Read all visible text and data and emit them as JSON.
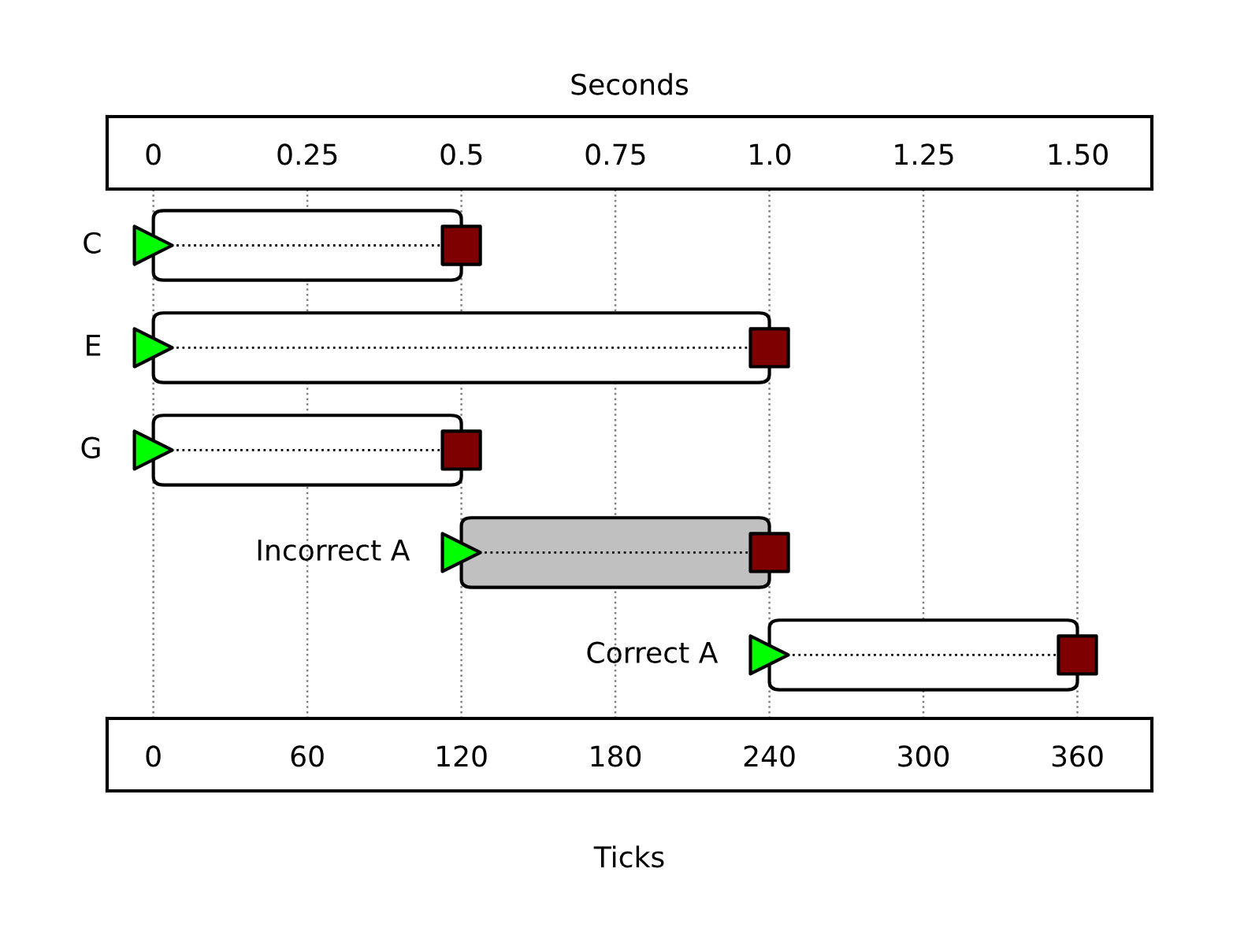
{
  "chart_data": {
    "type": "bar",
    "orientation": "horizontal",
    "xlabel": "Ticks",
    "x2label": "Seconds",
    "categories": [
      "C",
      "E",
      "G",
      "Incorrect A",
      "Correct A"
    ],
    "xlim": [
      -18,
      389
    ],
    "xticks": [
      0,
      60,
      120,
      180,
      240,
      300,
      360
    ],
    "x2lim": [
      -0.075,
      1.62
    ],
    "x2ticks": [
      0,
      0.25,
      0.5,
      0.75,
      {
        "value": 1.0,
        "label": "1.0"
      },
      1.25,
      {
        "value": 1.5,
        "label": "1.50"
      }
    ],
    "grid": "x",
    "series": [
      {
        "base": [
          0,
          0,
          0,
          120,
          240
        ],
        "values": [
          120,
          240,
          120,
          120,
          120
        ],
        "colors": [
          "#ffffff",
          "#ffffff",
          "#ffffff",
          "#c0c0c0",
          "#ffffff"
        ],
        "line_style": "dotted"
      },
      {
        "type": "scatter",
        "values": [
          0,
          0,
          0,
          120,
          240
        ],
        "color": "#00ff00",
        "marker": "triangle"
      },
      {
        "type": "scatter",
        "values": [
          120,
          240,
          120,
          240,
          360
        ],
        "color": "#7f0000",
        "marker": "square"
      }
    ]
  }
}
